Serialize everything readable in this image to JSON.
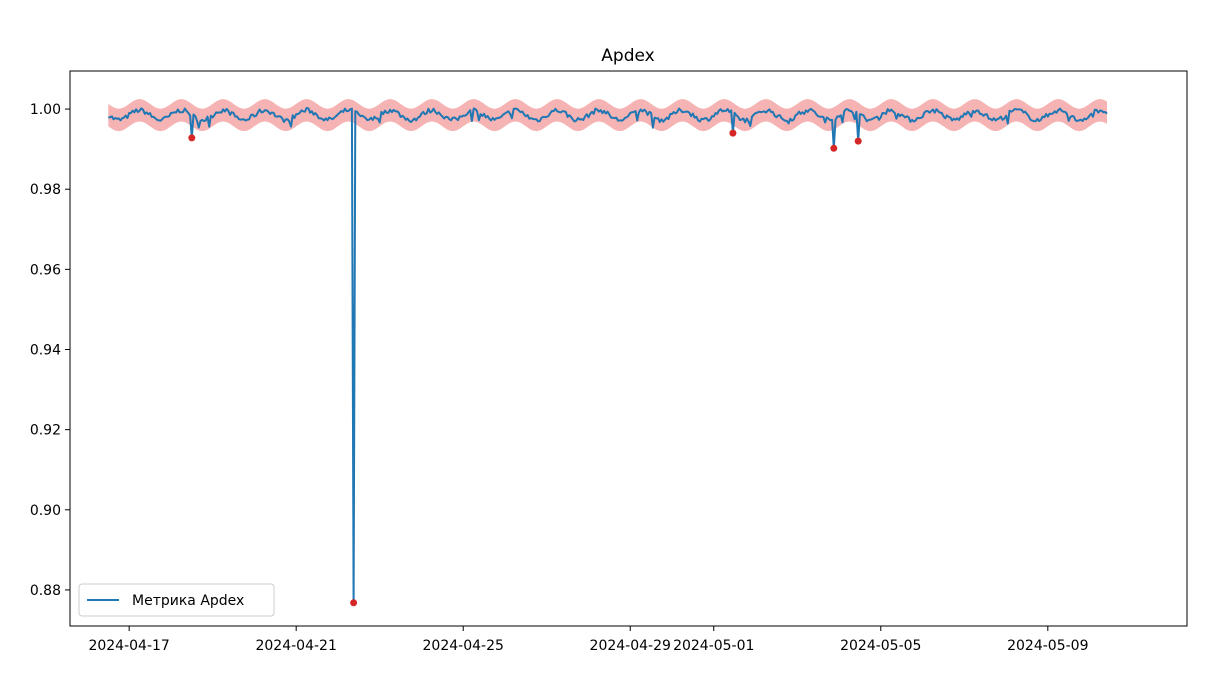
{
  "chart_data": {
    "type": "line",
    "title": "Apdex",
    "xlabel": "",
    "ylabel": "",
    "x_range": [
      "2024-04-15T14:00",
      "2024-05-12T08:00"
    ],
    "ylim": [
      0.871,
      1.0095
    ],
    "x_ticks": [
      "2024-04-17",
      "2024-04-21",
      "2024-04-25",
      "2024-04-29",
      "2024-05-01",
      "2024-05-05",
      "2024-05-09"
    ],
    "y_ticks": [
      "0.88",
      "0.90",
      "0.92",
      "0.94",
      "0.96",
      "0.98",
      "1.00"
    ],
    "grid": false,
    "legend": {
      "position": "lower-left"
    },
    "series": [
      {
        "name": "Метрика Apdex",
        "color": "#1f77b4",
        "x_start": "2024-04-16T12:00",
        "x_end": "2024-05-10T10:00",
        "baseline": 0.9985,
        "daily_amplitude": 0.0012
      }
    ],
    "band": {
      "color": "#f08080",
      "half_width": 0.0028
    },
    "anomalies": {
      "color": "#d62728",
      "points": [
        {
          "x": "2024-04-18T12:00",
          "y": 0.9928
        },
        {
          "x": "2024-04-22T09:00",
          "y": 0.8768
        },
        {
          "x": "2024-05-01T11:00",
          "y": 0.994
        },
        {
          "x": "2024-05-03T21:00",
          "y": 0.9902
        },
        {
          "x": "2024-05-04T11:00",
          "y": 0.992
        }
      ]
    }
  }
}
